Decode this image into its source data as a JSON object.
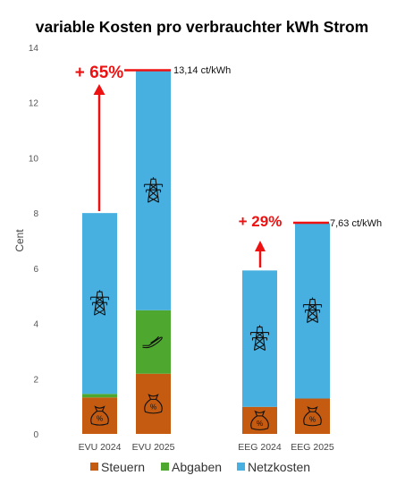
{
  "chart_data": {
    "type": "bar",
    "stacked": true,
    "title": "variable Kosten pro verbrauchter kWh Strom",
    "ylabel": "Cent",
    "xlabel": "",
    "ylim": [
      0,
      14
    ],
    "yticks": [
      0,
      2,
      4,
      6,
      8,
      10,
      12,
      14
    ],
    "categories": [
      "EVU 2024",
      "EVU 2025",
      "EEG 2024",
      "EEG 2025"
    ],
    "series": [
      {
        "name": "Steuern",
        "color": "#c55a11",
        "values": [
          1.32,
          2.18,
          0.98,
          1.28
        ],
        "icon": "money-bag-icon"
      },
      {
        "name": "Abgaben",
        "color": "#4ea72e",
        "values": [
          0.13,
          2.3,
          0.0,
          0.0
        ],
        "icon": "hand-icon"
      },
      {
        "name": "Netzkosten",
        "color": "#47b0e0",
        "values": [
          6.55,
          8.66,
          4.94,
          6.35
        ],
        "icon": "power-pylon-icon"
      }
    ],
    "legend_position": "bottom",
    "grid": false,
    "annotations": {
      "evu_change": "+ 65%",
      "evu_total": "13,14 ct/kWh",
      "eeg_change": "+ 29%",
      "eeg_total": "7,63 ct/kWh"
    },
    "accent_color": "#ee1111"
  }
}
